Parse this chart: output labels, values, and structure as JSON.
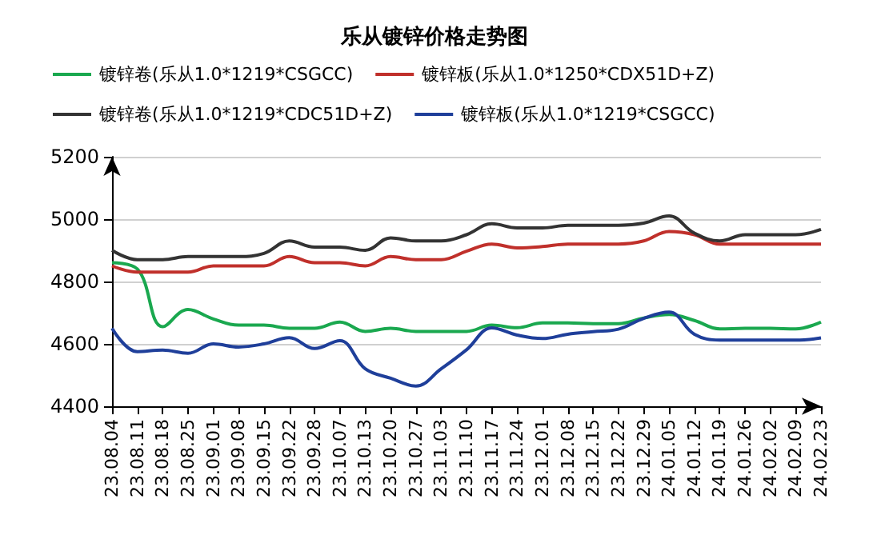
{
  "chart_data": {
    "type": "line",
    "title": "乐从镀锌价格走势图",
    "categories": [
      "23.08.04",
      "23.08.11",
      "23.08.18",
      "23.08.25",
      "23.09.01",
      "23.09.08",
      "23.09.15",
      "23.09.22",
      "23.09.28",
      "23.10.07",
      "23.10.13",
      "23.10.20",
      "23.10.27",
      "23.11.03",
      "23.11.10",
      "23.11.17",
      "23.11.24",
      "23.12.01",
      "23.12.08",
      "23.12.15",
      "23.12.22",
      "23.12.29",
      "24.01.05",
      "24.01.12",
      "24.01.19",
      "24.01.26",
      "24.02.02",
      "24.02.09",
      "24.02.23"
    ],
    "series": [
      {
        "name": "镀锌卷(乐从1.0*1219*CSGCC)",
        "color": "#1aa84f",
        "values": [
          4860,
          4840,
          4655,
          4710,
          4680,
          4660,
          4660,
          4650,
          4650,
          4670,
          4640,
          4650,
          4640,
          4640,
          4640,
          4660,
          4652,
          4667,
          4667,
          4665,
          4665,
          4683,
          4694,
          4675,
          4648,
          4650,
          4650,
          4648,
          4670
        ]
      },
      {
        "name": "镀锌板(乐从1.0*1250*CDX51D+Z)",
        "color": "#c0302b",
        "values": [
          4850,
          4830,
          4830,
          4830,
          4850,
          4850,
          4850,
          4880,
          4860,
          4860,
          4850,
          4880,
          4870,
          4870,
          4897,
          4920,
          4908,
          4912,
          4920,
          4920,
          4920,
          4930,
          4960,
          4950,
          4920,
          4920,
          4920,
          4920,
          4920
        ]
      },
      {
        "name": "镀锌卷(乐从1.0*1219*CDC51D+Z)",
        "color": "#333333",
        "values": [
          4900,
          4870,
          4870,
          4880,
          4880,
          4880,
          4890,
          4930,
          4910,
          4910,
          4900,
          4940,
          4930,
          4930,
          4950,
          4985,
          4972,
          4972,
          4980,
          4980,
          4980,
          4987,
          5010,
          4955,
          4930,
          4950,
          4950,
          4950,
          4967
        ]
      },
      {
        "name": "镀锌板(乐从1.0*1219*CSGCC)",
        "color": "#1f3f9a",
        "values": [
          4650,
          4575,
          4580,
          4570,
          4600,
          4590,
          4600,
          4620,
          4585,
          4610,
          4520,
          4490,
          4465,
          4520,
          4581,
          4651,
          4628,
          4617,
          4631,
          4639,
          4647,
          4682,
          4702,
          4631,
          4612,
          4612,
          4612,
          4612,
          4619
        ]
      }
    ],
    "ylim": [
      4400,
      5200
    ],
    "yticks": [
      4400,
      4600,
      4800,
      5000,
      5200
    ],
    "grid": "y",
    "legend": "top",
    "marker": "none",
    "line_style": "solid"
  }
}
